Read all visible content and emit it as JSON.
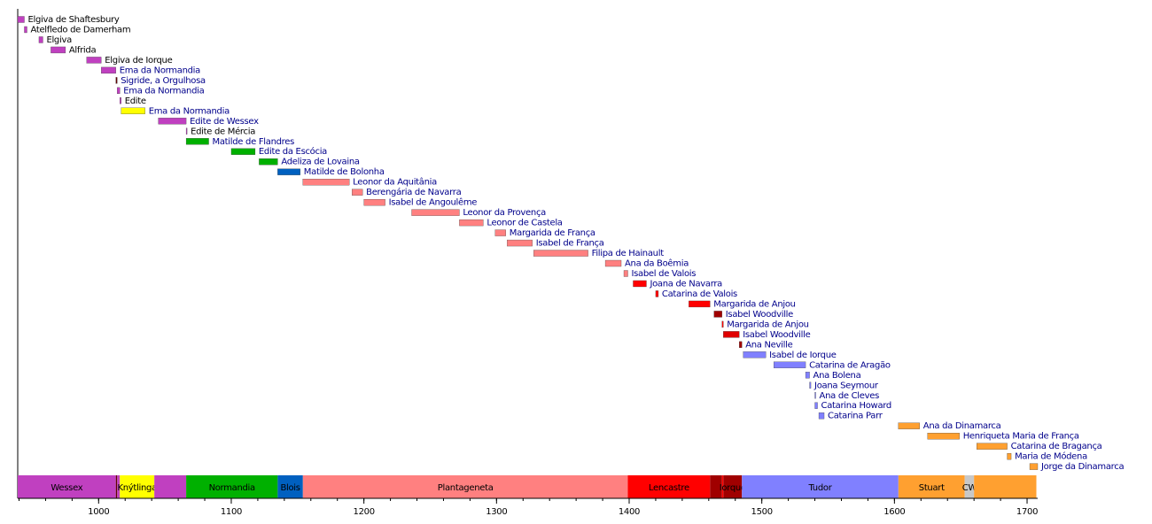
{
  "chart_data": {
    "type": "timeline",
    "xlim": [
      939,
      1708
    ],
    "xticks": [
      1000,
      1100,
      1200,
      1300,
      1400,
      1500,
      1600,
      1700
    ],
    "xminorticks": [
      940,
      960,
      980,
      1000,
      1020,
      1040,
      1060,
      1080,
      1100,
      1120,
      1140,
      1160,
      1180,
      1200,
      1220,
      1240,
      1260,
      1280,
      1300,
      1320,
      1340,
      1360,
      1380,
      1400,
      1420,
      1440,
      1460,
      1480,
      1500,
      1520,
      1540,
      1560,
      1580,
      1600,
      1620,
      1640,
      1660,
      1680,
      1700
    ],
    "items": [
      {
        "name": "Elgiva de Shaftesbury",
        "start": 939,
        "end": 944,
        "color": "#c040c0",
        "label_color": "#000000"
      },
      {
        "name": "Atelfledo de Damerham",
        "start": 944,
        "end": 946,
        "color": "#c040c0",
        "label_color": "#000000"
      },
      {
        "name": "Elgiva",
        "start": 955,
        "end": 958,
        "color": "#c040c0",
        "label_color": "#000000"
      },
      {
        "name": "Alfrida",
        "start": 964,
        "end": 975,
        "color": "#c040c0",
        "label_color": "#000000"
      },
      {
        "name": "Elgiva de Iorque",
        "start": 991,
        "end": 1002,
        "color": "#c040c0",
        "label_color": "#000000"
      },
      {
        "name": "Ema da Normandia",
        "start": 1002,
        "end": 1013,
        "color": "#c040c0",
        "label_color": "#00008b"
      },
      {
        "name": "Sigride, a Orgulhosa",
        "start": 1013,
        "end": 1014,
        "color": "#600000",
        "label_color": "#00008b"
      },
      {
        "name": "Ema da Normandia",
        "start": 1014,
        "end": 1016,
        "color": "#c040c0",
        "label_color": "#00008b"
      },
      {
        "name": "Edite",
        "start": 1016,
        "end": 1017,
        "color": "#c040c0",
        "label_color": "#000000"
      },
      {
        "name": "Ema da Normandia",
        "start": 1017,
        "end": 1035,
        "color": "#ffff00",
        "label_color": "#00008b"
      },
      {
        "name": "Edite de Wessex",
        "start": 1045,
        "end": 1066,
        "color": "#c040c0",
        "label_color": "#00008b"
      },
      {
        "name": "Edite de Mércia",
        "start": 1066,
        "end": 1066.6,
        "color": "#c040c0",
        "label_color": "#000000"
      },
      {
        "name": "Matilde de Flandres",
        "start": 1066,
        "end": 1083,
        "color": "#00b000",
        "label_color": "#00008b"
      },
      {
        "name": "Edite da Escócia",
        "start": 1100,
        "end": 1118,
        "color": "#00b000",
        "label_color": "#00008b"
      },
      {
        "name": "Adeliza de Lovaina",
        "start": 1121,
        "end": 1135,
        "color": "#00b000",
        "label_color": "#00008b"
      },
      {
        "name": "Matilde de Bolonha",
        "start": 1135,
        "end": 1152,
        "color": "#0060c0",
        "label_color": "#00008b"
      },
      {
        "name": "Leonor da Aquitânia",
        "start": 1154,
        "end": 1189,
        "color": "#ff8080",
        "label_color": "#00008b"
      },
      {
        "name": "Berengária de Navarra",
        "start": 1191,
        "end": 1199,
        "color": "#ff8080",
        "label_color": "#00008b"
      },
      {
        "name": "Isabel de Angoulême",
        "start": 1200,
        "end": 1216,
        "color": "#ff8080",
        "label_color": "#00008b"
      },
      {
        "name": "Leonor da Provença",
        "start": 1236,
        "end": 1272,
        "color": "#ff8080",
        "label_color": "#00008b"
      },
      {
        "name": "Leonor de Castela",
        "start": 1272,
        "end": 1290,
        "color": "#ff8080",
        "label_color": "#00008b"
      },
      {
        "name": "Margarida de França",
        "start": 1299,
        "end": 1307,
        "color": "#ff8080",
        "label_color": "#00008b"
      },
      {
        "name": "Isabel de França",
        "start": 1308,
        "end": 1327,
        "color": "#ff8080",
        "label_color": "#00008b"
      },
      {
        "name": "Filipa de Hainault",
        "start": 1328,
        "end": 1369,
        "color": "#ff8080",
        "label_color": "#00008b"
      },
      {
        "name": "Ana da Boêmia",
        "start": 1382,
        "end": 1394,
        "color": "#ff8080",
        "label_color": "#00008b"
      },
      {
        "name": "Isabel de Valois",
        "start": 1396,
        "end": 1399,
        "color": "#ff8080",
        "label_color": "#00008b"
      },
      {
        "name": "Joana de Navarra",
        "start": 1403,
        "end": 1413,
        "color": "#ff0000",
        "label_color": "#00008b"
      },
      {
        "name": "Catarina de Valois",
        "start": 1420,
        "end": 1422,
        "color": "#ff0000",
        "label_color": "#00008b"
      },
      {
        "name": "Margarida de Anjou",
        "start": 1445,
        "end": 1461,
        "color": "#ff0000",
        "label_color": "#00008b"
      },
      {
        "name": "Isabel Woodville",
        "start": 1464,
        "end": 1470,
        "color": "#a00000",
        "label_color": "#00008b"
      },
      {
        "name": "Margarida de Anjou",
        "start": 1470,
        "end": 1471,
        "color": "#ff0000",
        "label_color": "#00008b"
      },
      {
        "name": "Isabel Woodville",
        "start": 1471,
        "end": 1483,
        "color": "#e00000",
        "label_color": "#00008b"
      },
      {
        "name": "Ana Neville",
        "start": 1483,
        "end": 1485,
        "color": "#a00000",
        "label_color": "#00008b"
      },
      {
        "name": "Isabel de Iorque",
        "start": 1486,
        "end": 1503,
        "color": "#8080ff",
        "label_color": "#00008b"
      },
      {
        "name": "Catarina de Aragão",
        "start": 1509,
        "end": 1533,
        "color": "#8080ff",
        "label_color": "#00008b"
      },
      {
        "name": "Ana Bolena",
        "start": 1533,
        "end": 1536,
        "color": "#8080ff",
        "label_color": "#00008b"
      },
      {
        "name": "Joana Seymour",
        "start": 1536,
        "end": 1537,
        "color": "#8080ff",
        "label_color": "#00008b"
      },
      {
        "name": "Ana de Cleves",
        "start": 1540,
        "end": 1540.6,
        "color": "#8080ff",
        "label_color": "#00008b"
      },
      {
        "name": "Catarina Howard",
        "start": 1540,
        "end": 1542,
        "color": "#8080ff",
        "label_color": "#00008b"
      },
      {
        "name": "Catarina Parr",
        "start": 1543,
        "end": 1547,
        "color": "#8080ff",
        "label_color": "#00008b"
      },
      {
        "name": "Ana da Dinamarca",
        "start": 1603,
        "end": 1619,
        "color": "#ffa030",
        "label_color": "#00008b"
      },
      {
        "name": "Henriqueta Maria de França",
        "start": 1625,
        "end": 1649,
        "color": "#ffa030",
        "label_color": "#00008b"
      },
      {
        "name": "Catarina de Bragança",
        "start": 1662,
        "end": 1685,
        "color": "#ffa030",
        "label_color": "#00008b"
      },
      {
        "name": "Maria de Módena",
        "start": 1685,
        "end": 1688,
        "color": "#ffa030",
        "label_color": "#00008b"
      },
      {
        "name": "Jorge da Dinamarca",
        "start": 1702,
        "end": 1708,
        "color": "#ffa030",
        "label_color": "#00008b"
      }
    ],
    "periods": [
      {
        "name": "Wessex",
        "start": 939,
        "end": 1013,
        "color": "#c040c0"
      },
      {
        "name": null,
        "start": 1013,
        "end": 1014,
        "color": "#600000"
      },
      {
        "name": null,
        "start": 1014,
        "end": 1016,
        "color": "#c040c0"
      },
      {
        "name": "Knýtlinga",
        "start": 1016,
        "end": 1042,
        "color": "#ffff00"
      },
      {
        "name": null,
        "start": 1042,
        "end": 1066,
        "color": "#c040c0"
      },
      {
        "name": "Normandia",
        "start": 1066,
        "end": 1135,
        "color": "#00b000"
      },
      {
        "name": "Blois",
        "start": 1135,
        "end": 1154,
        "color": "#0060c0"
      },
      {
        "name": "Plantageneta",
        "start": 1154,
        "end": 1399,
        "color": "#ff8080"
      },
      {
        "name": "Lencastre",
        "start": 1399,
        "end": 1461,
        "color": "#ff0000"
      },
      {
        "name": null,
        "start": 1461,
        "end": 1470,
        "color": "#a00000"
      },
      {
        "name": null,
        "start": 1470,
        "end": 1471,
        "color": "#ff0000"
      },
      {
        "name": "Iorque",
        "start": 1471,
        "end": 1485,
        "color": "#a00000"
      },
      {
        "name": "Tudor",
        "start": 1485,
        "end": 1603,
        "color": "#8080ff"
      },
      {
        "name": "Stuart",
        "start": 1603,
        "end": 1653,
        "color": "#ffa030"
      },
      {
        "name": "CW",
        "start": 1653,
        "end": 1660,
        "color": "#c8c8c8"
      },
      {
        "name": null,
        "start": 1660,
        "end": 1707,
        "color": "#ffa030"
      }
    ]
  }
}
